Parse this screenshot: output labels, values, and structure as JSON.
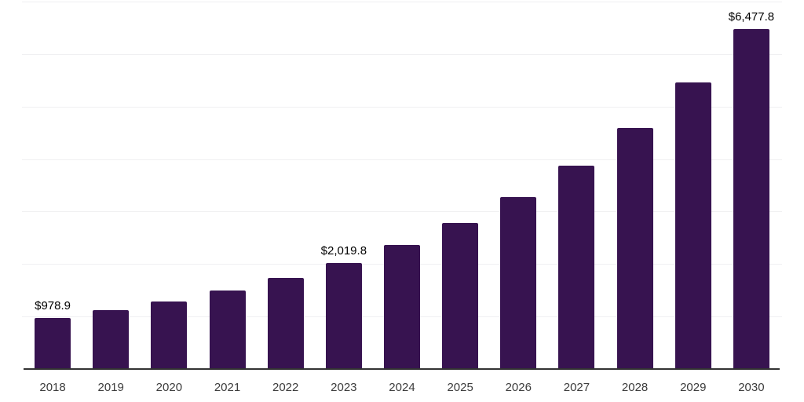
{
  "chart_data": {
    "type": "bar",
    "title": "",
    "xlabel": "",
    "ylabel": "",
    "categories": [
      "2018",
      "2019",
      "2020",
      "2021",
      "2022",
      "2023",
      "2024",
      "2025",
      "2026",
      "2027",
      "2028",
      "2029",
      "2030"
    ],
    "values": [
      978.9,
      1120,
      1290,
      1490,
      1740,
      2019.8,
      2360,
      2780,
      3270,
      3875,
      4590,
      5460,
      6477.8
    ],
    "data_labels": [
      "$978.9",
      "",
      "",
      "",
      "",
      "$2,019.8",
      "",
      "",
      "",
      "",
      "",
      "",
      "$6,477.8"
    ],
    "ylim": [
      0,
      7000
    ],
    "gridline_interval": 1000,
    "grid": true,
    "legend": false,
    "y_tick_labels_visible": false,
    "colors": {
      "bar": "#371350",
      "axis_line": "#333333",
      "gridline": "#f0f0f2",
      "tick_label": "#3c3c3c",
      "data_label": "#000000",
      "background": "#ffffff"
    }
  }
}
